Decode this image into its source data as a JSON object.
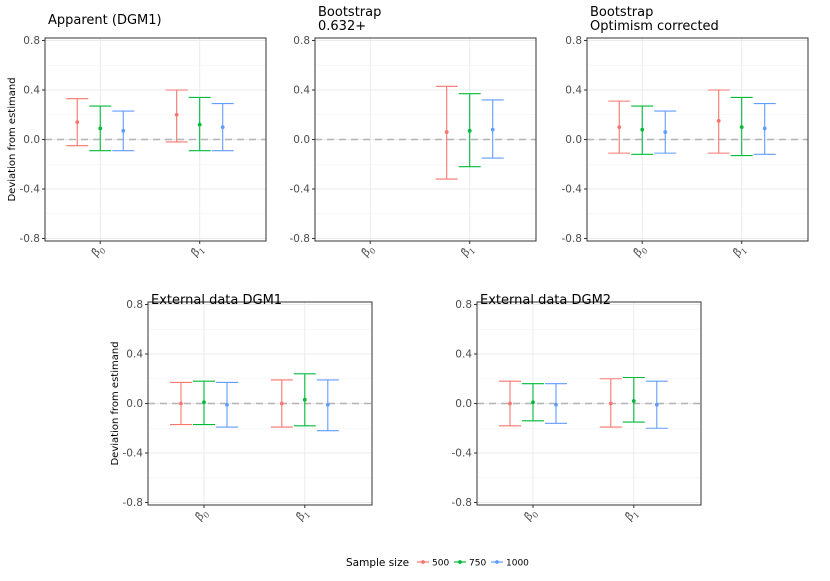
{
  "chart_data": [
    {
      "type": "errorbar",
      "title": [
        "Apparent (DGM1)"
      ],
      "ylabel": "Deviation from estimand",
      "ylim": [
        -0.82,
        0.82
      ],
      "yticks": [
        "0.8",
        "0.4",
        "0.0",
        "-0.4",
        "-0.8"
      ],
      "categories": [
        "β0",
        "β1"
      ],
      "reference_line": 0,
      "series": [
        {
          "name": "500",
          "points": [
            {
              "est": 0.14,
              "lo": -0.05,
              "hi": 0.33
            },
            {
              "est": 0.2,
              "lo": -0.02,
              "hi": 0.4
            }
          ]
        },
        {
          "name": "750",
          "points": [
            {
              "est": 0.09,
              "lo": -0.09,
              "hi": 0.27
            },
            {
              "est": 0.12,
              "lo": -0.09,
              "hi": 0.34
            }
          ]
        },
        {
          "name": "1000",
          "points": [
            {
              "est": 0.07,
              "lo": -0.09,
              "hi": 0.23
            },
            {
              "est": 0.1,
              "lo": -0.09,
              "hi": 0.29
            }
          ]
        }
      ]
    },
    {
      "type": "errorbar",
      "title": [
        "Bootstrap",
        "0.632+"
      ],
      "ylabel": "",
      "ylim": [
        -0.82,
        0.82
      ],
      "yticks": [
        "0.8",
        "0.4",
        "0.0",
        "-0.4",
        "-0.8"
      ],
      "categories": [
        "β0",
        "β1"
      ],
      "reference_line": 0,
      "series": [
        {
          "name": "500",
          "points": [
            null,
            {
              "est": 0.06,
              "lo": -0.32,
              "hi": 0.43
            }
          ]
        },
        {
          "name": "750",
          "points": [
            null,
            {
              "est": 0.07,
              "lo": -0.22,
              "hi": 0.37
            }
          ]
        },
        {
          "name": "1000",
          "points": [
            null,
            {
              "est": 0.08,
              "lo": -0.15,
              "hi": 0.32
            }
          ]
        }
      ]
    },
    {
      "type": "errorbar",
      "title": [
        "Bootstrap",
        "Optimism corrected"
      ],
      "ylabel": "",
      "ylim": [
        -0.82,
        0.82
      ],
      "yticks": [
        "0.8",
        "0.4",
        "0.0",
        "-0.4",
        "-0.8"
      ],
      "categories": [
        "β0",
        "β1"
      ],
      "reference_line": 0,
      "series": [
        {
          "name": "500",
          "points": [
            {
              "est": 0.1,
              "lo": -0.11,
              "hi": 0.31
            },
            {
              "est": 0.15,
              "lo": -0.11,
              "hi": 0.4
            }
          ]
        },
        {
          "name": "750",
          "points": [
            {
              "est": 0.08,
              "lo": -0.12,
              "hi": 0.27
            },
            {
              "est": 0.1,
              "lo": -0.13,
              "hi": 0.34
            }
          ]
        },
        {
          "name": "1000",
          "points": [
            {
              "est": 0.06,
              "lo": -0.11,
              "hi": 0.23
            },
            {
              "est": 0.09,
              "lo": -0.12,
              "hi": 0.29
            }
          ]
        }
      ]
    },
    {
      "type": "errorbar",
      "title": [
        "External data DGM1"
      ],
      "ylabel": "Deviation from estimand",
      "ylim": [
        -0.82,
        0.82
      ],
      "yticks": [
        "0.8",
        "0.4",
        "0.0",
        "-0.4",
        "-0.8"
      ],
      "categories": [
        "β0",
        "β1"
      ],
      "reference_line": 0,
      "series": [
        {
          "name": "500",
          "points": [
            {
              "est": 0.0,
              "lo": -0.17,
              "hi": 0.17
            },
            {
              "est": 0.0,
              "lo": -0.19,
              "hi": 0.19
            }
          ]
        },
        {
          "name": "750",
          "points": [
            {
              "est": 0.01,
              "lo": -0.17,
              "hi": 0.18
            },
            {
              "est": 0.03,
              "lo": -0.18,
              "hi": 0.24
            }
          ]
        },
        {
          "name": "1000",
          "points": [
            {
              "est": -0.01,
              "lo": -0.19,
              "hi": 0.17
            },
            {
              "est": -0.01,
              "lo": -0.22,
              "hi": 0.19
            }
          ]
        }
      ]
    },
    {
      "type": "errorbar",
      "title": [
        "External data DGM2"
      ],
      "ylabel": "",
      "ylim": [
        -0.82,
        0.82
      ],
      "yticks": [
        "0.8",
        "0.4",
        "0.0",
        "-0.4",
        "-0.8"
      ],
      "categories": [
        "β0",
        "β1"
      ],
      "reference_line": 0,
      "series": [
        {
          "name": "500",
          "points": [
            {
              "est": 0.0,
              "lo": -0.18,
              "hi": 0.18
            },
            {
              "est": 0.0,
              "lo": -0.19,
              "hi": 0.2
            }
          ]
        },
        {
          "name": "750",
          "points": [
            {
              "est": 0.01,
              "lo": -0.14,
              "hi": 0.16
            },
            {
              "est": 0.02,
              "lo": -0.15,
              "hi": 0.21
            }
          ]
        },
        {
          "name": "1000",
          "points": [
            {
              "est": -0.01,
              "lo": -0.16,
              "hi": 0.16
            },
            {
              "est": -0.01,
              "lo": -0.2,
              "hi": 0.18
            }
          ]
        }
      ]
    }
  ],
  "legend": {
    "title": "Sample size",
    "items": [
      {
        "label": "500",
        "color": "#F8766D"
      },
      {
        "label": "750",
        "color": "#00BA38"
      },
      {
        "label": "1000",
        "color": "#619CFF"
      }
    ]
  }
}
